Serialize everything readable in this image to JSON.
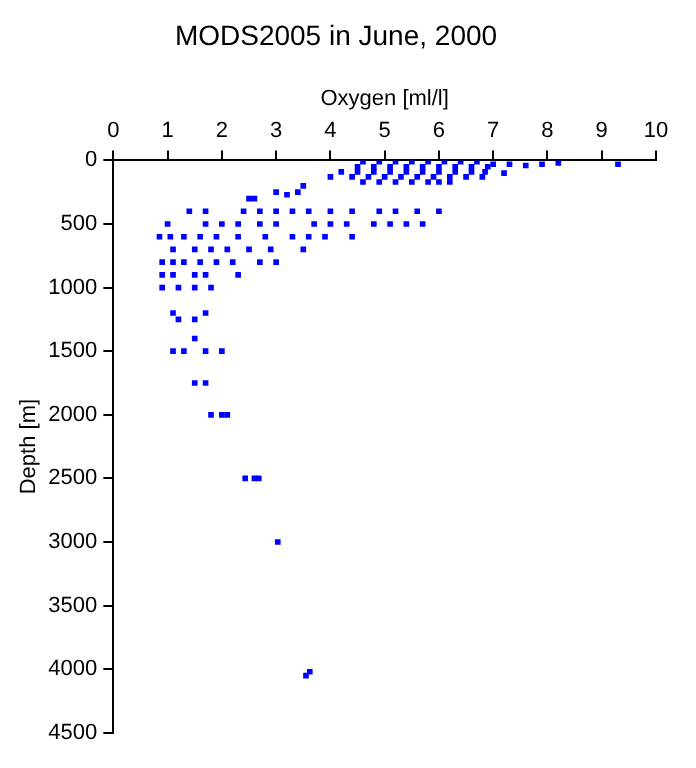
{
  "chart_data": {
    "type": "scatter",
    "title": "MODS2005 in June, 2000",
    "xlabel": "Oxygen [ml/l]",
    "ylabel": "Depth [m]",
    "xlim": [
      0,
      10
    ],
    "xticks": [
      0,
      1,
      2,
      3,
      4,
      5,
      6,
      7,
      8,
      9,
      10
    ],
    "ylim": [
      4500,
      0
    ],
    "yticks": [
      0,
      500,
      1000,
      1500,
      2000,
      2500,
      3000,
      3500,
      4000,
      4500
    ],
    "grid": false,
    "marker": "square",
    "series": [
      {
        "color": "#0000ff",
        "x": [
          4.6,
          4.9,
          5.2,
          5.5,
          5.8,
          6.1,
          6.4,
          6.7,
          4.5,
          4.8,
          5.1,
          5.4,
          5.7,
          6.0,
          6.3,
          6.6,
          6.9,
          4.2,
          4.5,
          4.8,
          5.1,
          5.4,
          5.7,
          6.0,
          6.3,
          6.6,
          6.85,
          4.0,
          4.4,
          4.7,
          5.0,
          5.3,
          5.6,
          5.9,
          6.2,
          6.5,
          6.8,
          4.6,
          4.9,
          5.2,
          5.5,
          5.8,
          6.0,
          6.2,
          7.0,
          7.3,
          7.6,
          7.9,
          8.2,
          9.3,
          7.2,
          3.5,
          3.4,
          3.0,
          3.2,
          2.5,
          2.6,
          1.4,
          1.7,
          2.4,
          2.7,
          3.0,
          3.3,
          3.6,
          4.0,
          4.4,
          4.9,
          5.2,
          5.6,
          6.0,
          1.0,
          1.7,
          2.0,
          2.3,
          2.7,
          3.0,
          3.7,
          4.0,
          4.3,
          4.8,
          5.1,
          5.4,
          5.7,
          0.85,
          1.05,
          1.3,
          1.6,
          1.9,
          2.3,
          2.8,
          3.3,
          3.6,
          3.9,
          4.4,
          1.1,
          1.5,
          1.8,
          2.1,
          2.5,
          2.9,
          3.5,
          0.9,
          1.1,
          1.3,
          1.6,
          1.9,
          2.2,
          2.7,
          3.0,
          0.9,
          1.1,
          1.5,
          1.7,
          2.3,
          0.9,
          1.2,
          1.5,
          1.8,
          1.1,
          1.2,
          1.5,
          1.7,
          1.5,
          1.1,
          1.3,
          1.7,
          2.0,
          1.5,
          1.7,
          1.8,
          2.0,
          2.1,
          2.43,
          2.6,
          2.68,
          3.03,
          3.55,
          3.62
        ],
        "values": [
          10,
          10,
          10,
          10,
          10,
          10,
          10,
          10,
          50,
          50,
          50,
          50,
          50,
          50,
          50,
          50,
          50,
          90,
          90,
          90,
          90,
          90,
          90,
          90,
          90,
          90,
          90,
          130,
          130,
          130,
          130,
          130,
          130,
          130,
          130,
          130,
          130,
          170,
          170,
          170,
          170,
          170,
          170,
          170,
          30,
          30,
          40,
          30,
          20,
          30,
          100,
          200,
          250,
          250,
          270,
          300,
          300,
          400,
          400,
          400,
          400,
          400,
          400,
          400,
          400,
          400,
          400,
          400,
          400,
          400,
          500,
          500,
          500,
          500,
          500,
          500,
          500,
          500,
          500,
          500,
          500,
          500,
          500,
          600,
          600,
          600,
          600,
          600,
          600,
          600,
          600,
          600,
          600,
          600,
          700,
          700,
          700,
          700,
          700,
          700,
          700,
          800,
          800,
          800,
          800,
          800,
          800,
          800,
          800,
          900,
          900,
          900,
          900,
          900,
          1000,
          1000,
          1000,
          1000,
          1200,
          1250,
          1250,
          1200,
          1400,
          1500,
          1500,
          1500,
          1500,
          1750,
          1750,
          2000,
          2000,
          2000,
          2500,
          2500,
          2500,
          3000,
          4050,
          4020
        ]
      }
    ]
  }
}
